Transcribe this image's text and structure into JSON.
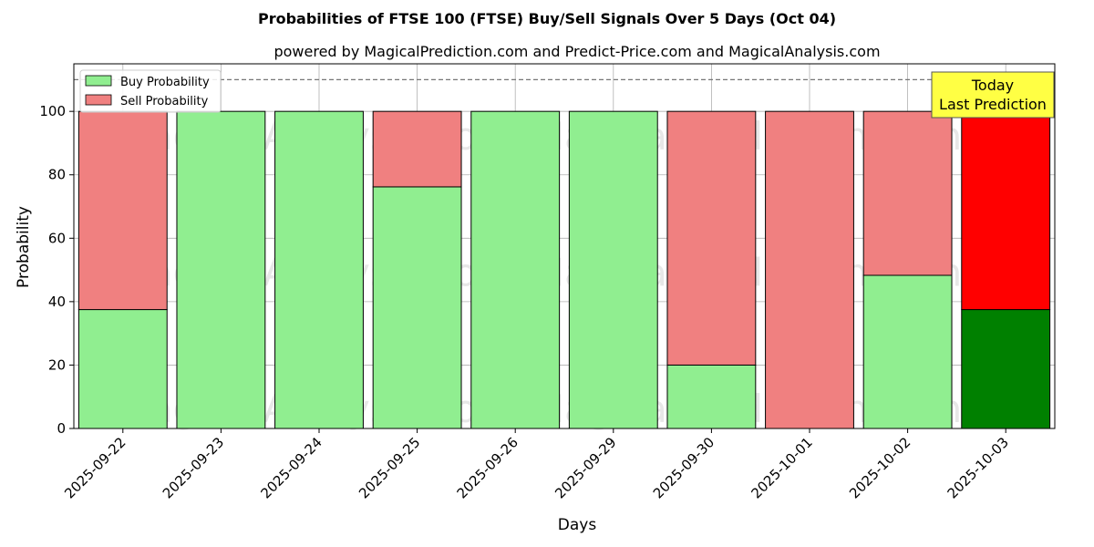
{
  "chart_data": {
    "type": "bar",
    "stacked": true,
    "title": "Probabilities of FTSE 100 (FTSE) Buy/Sell Signals Over 5 Days (Oct 04)",
    "subtitle": "powered by MagicalPrediction.com and Predict-Price.com and MagicalAnalysis.com",
    "xlabel": "Days",
    "ylabel": "Probability",
    "ylim": [
      0,
      115
    ],
    "yticks": [
      0,
      20,
      40,
      60,
      80,
      100
    ],
    "reference_line": 110,
    "grid": true,
    "legend_position": "top-left",
    "categories": [
      "2025-09-22",
      "2025-09-23",
      "2025-09-24",
      "2025-09-25",
      "2025-09-26",
      "2025-09-29",
      "2025-09-30",
      "2025-10-01",
      "2025-10-02",
      "2025-10-03"
    ],
    "series": [
      {
        "name": "Buy Probability",
        "values": [
          37.5,
          100,
          100,
          76.2,
          100,
          100,
          20,
          0,
          48.3,
          37.5
        ],
        "color": "#90ee90",
        "highlight_color": "#008000"
      },
      {
        "name": "Sell Probability",
        "values": [
          62.5,
          0,
          0,
          23.8,
          0,
          0,
          80,
          100,
          51.7,
          62.5
        ],
        "color": "#f08080",
        "highlight_color": "#ff0000"
      }
    ],
    "highlight_index": 9,
    "annotation": {
      "line1": "Today",
      "line2": "Last Prediction",
      "background": "#ffff44"
    },
    "watermarks": [
      "MagicalAnalysis.com",
      "MagicalPrediction.com"
    ]
  }
}
